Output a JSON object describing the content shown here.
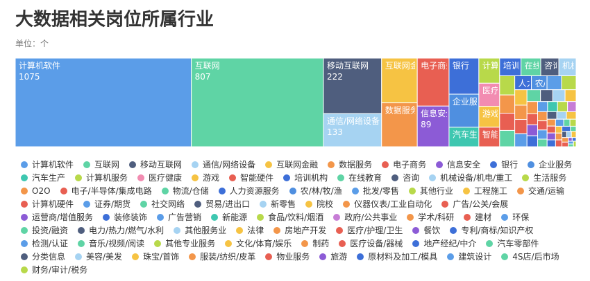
{
  "chart_data": {
    "type": "treemap",
    "title": "大数据相关岗位所属行业",
    "subtitle": "单位：个",
    "categories": [
      "计算机软件",
      "互联网",
      "移动互联网",
      "通信/网络设备",
      "互联网金融",
      "数据服务",
      "电子商务",
      "信息安全",
      "银行",
      "企业服务",
      "汽车生产",
      "计算机服务",
      "医疗健康",
      "游戏",
      "智能硬件",
      "培训机构",
      "在线教育",
      "咨询",
      "机械设备/机电/重工",
      "生活服务",
      "O2O",
      "电子/半导体/集成电路",
      "物流/仓储",
      "人力资源服务",
      "农/林/牧/渔",
      "批发/零售",
      "其他行业",
      "工程施工",
      "交通/运输",
      "计算机硬件",
      "证券/期货",
      "社交网络",
      "贸易/进出口",
      "新零售",
      "院校",
      "仪器仪表/工业自动化",
      "广告/公关/会展",
      "运营商/增值服务",
      "装修装饰",
      "广告营销",
      "新能源",
      "食品/饮料/烟酒",
      "政府/公共事业",
      "学术/科研",
      "建材",
      "环保",
      "投资/融资",
      "电力/热力/燃气/水利",
      "其他服务业",
      "法律",
      "房地产开发",
      "医疗/护理/卫生",
      "餐饮",
      "专利/商标/知识产权",
      "检测/认证",
      "音乐/视频/阅读",
      "其他专业服务",
      "文化/体育/娱乐",
      "制药",
      "医疗设备/器械",
      "地产经纪/中介",
      "汽车零部件",
      "分类信息",
      "美容/美发",
      "珠宝/首饰",
      "服装/纺织/皮革",
      "物业服务",
      "旅游",
      "原材料及加工/模具",
      "建筑设计",
      "4S店/后市场",
      "财务/审计/税务"
    ],
    "values": [
      1075,
      807,
      222,
      133,
      110,
      108,
      105,
      89,
      74,
      68,
      40,
      36,
      33,
      30,
      28,
      26,
      24,
      22,
      21,
      20,
      19,
      18,
      17,
      16,
      15,
      14,
      14,
      13,
      12,
      12,
      11,
      11,
      10,
      10,
      9,
      9,
      8,
      8,
      8,
      7,
      7,
      7,
      6,
      6,
      6,
      6,
      5,
      5,
      5,
      5,
      4,
      4,
      4,
      4,
      4,
      3,
      3,
      3,
      3,
      3,
      3,
      2,
      2,
      2,
      2,
      2,
      2,
      1,
      1,
      1,
      1,
      1
    ],
    "value_labels_shown": [
      true,
      true,
      true,
      true,
      false,
      false,
      false,
      true,
      false,
      false,
      false,
      false,
      false,
      false,
      false,
      false,
      false,
      false,
      false,
      false,
      false,
      false,
      false,
      false,
      false,
      false,
      false,
      false,
      false,
      false,
      false,
      false,
      false,
      false,
      false,
      false,
      false,
      false,
      false,
      false,
      false,
      false,
      false,
      false,
      false,
      false,
      false,
      false,
      false,
      false,
      false,
      false,
      false,
      false,
      false,
      false,
      false,
      false,
      false,
      false,
      false,
      false,
      false,
      false,
      false,
      false,
      false,
      false,
      false,
      false,
      false,
      false
    ],
    "colors": [
      "#5b9de8",
      "#5fd4a5",
      "#4f5e7e",
      "#a6d3f2",
      "#f6c343",
      "#f3964a",
      "#e85f52",
      "#8c5bd6",
      "#3d6fd8",
      "#4f8fe0",
      "#3ec7b0",
      "#b8d94a",
      "#f28cb1",
      "#f6c343",
      "#e85f52",
      "#3d6fd8",
      "#5fd4a5",
      "#4f5e7e",
      "#a6d3f2",
      "#b8d94a",
      "#f3964a",
      "#e85f52",
      "#5fd4a5",
      "#3d6fd8",
      "#4f8fe0",
      "#5b9de8",
      "#b8d94a",
      "#f6c343",
      "#f3964a",
      "#e85f52",
      "#5b9de8",
      "#5fd4a5",
      "#4f5e7e",
      "#a6d3f2",
      "#f6c343",
      "#f3964a",
      "#e85f52",
      "#8c5bd6",
      "#3d6fd8",
      "#5b9de8",
      "#3ec7b0",
      "#b8d94a",
      "#c77dd6",
      "#f3964a",
      "#e85f52",
      "#5b9de8",
      "#5fd4a5",
      "#4f5e7e",
      "#a6d3f2",
      "#f6c343",
      "#f3964a",
      "#e85f52",
      "#8c5bd6",
      "#3d6fd8",
      "#5b9de8",
      "#5fd4a5",
      "#b8d94a",
      "#f6c343",
      "#f3964a",
      "#e85f52",
      "#3d6fd8",
      "#5fd4a5",
      "#4f5e7e",
      "#a6d3f2",
      "#f6c343",
      "#f3964a",
      "#e85f52",
      "#8c5bd6",
      "#3d6fd8",
      "#5b9de8",
      "#5fd4a5",
      "#b8d94a"
    ]
  }
}
